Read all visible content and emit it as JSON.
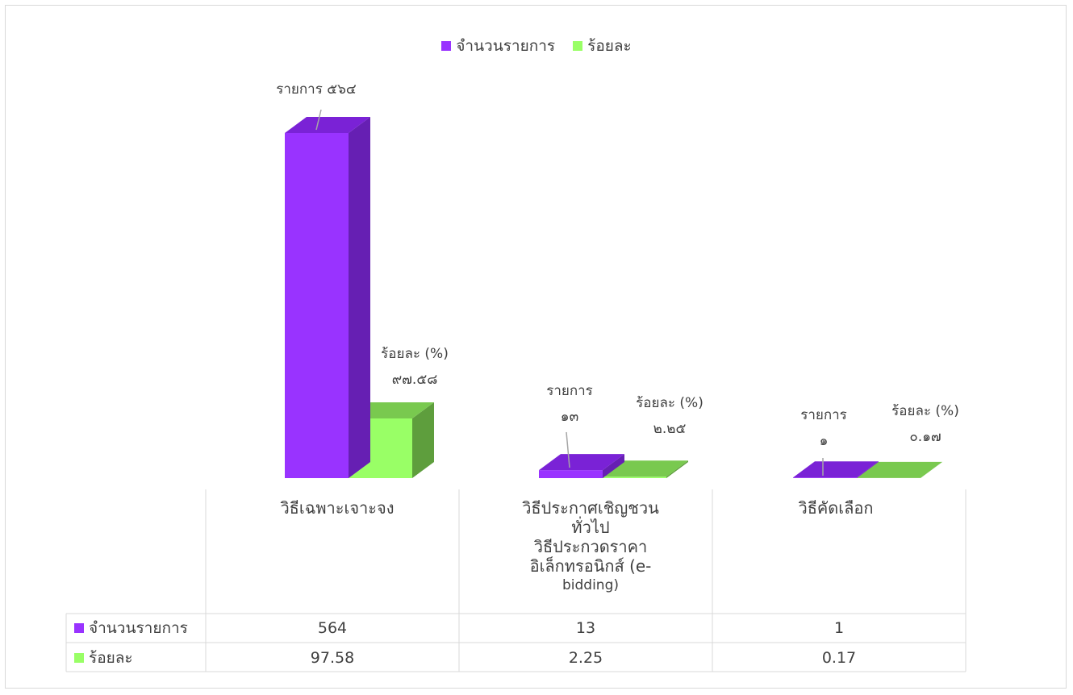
{
  "chart_data": {
    "type": "bar",
    "categories": [
      {
        "lines": [
          "วิธีเฉพาะเจาะจง"
        ],
        "small": []
      },
      {
        "lines": [
          "วิธีประกาศเชิญชวน",
          "ทั่วไป",
          "วิธีประกวดราคา",
          "อิเล็กทรอนิกส์ (e-"
        ],
        "small": [
          "bidding)"
        ]
      },
      {
        "lines": [
          "วิธีคัดเลือก"
        ],
        "small": []
      }
    ],
    "series": [
      {
        "name": "จำนวนรายการ",
        "color": "#9933ff",
        "values": [
          564,
          13,
          1
        ],
        "display": [
          "564",
          "13",
          "1"
        ]
      },
      {
        "name": "ร้อยละ",
        "color": "#99ff66",
        "values": [
          97.58,
          2.25,
          0.17
        ],
        "display": [
          "97.58",
          "2.25",
          "0.17"
        ]
      }
    ],
    "data_labels": [
      [
        [
          "รายการ ๕๖๔"
        ],
        [
          "รายการ",
          "๑๓"
        ],
        [
          "รายการ",
          "๑"
        ]
      ],
      [
        [
          "ร้อยละ (%)",
          "๙๗.๕๘"
        ],
        [
          "ร้อยละ (%)",
          "๒.๒๕"
        ],
        [
          "ร้อยละ (%)",
          "๐.๑๗"
        ]
      ]
    ],
    "legend": "top-center",
    "grid": false,
    "ylim": [
      0,
      564
    ]
  }
}
